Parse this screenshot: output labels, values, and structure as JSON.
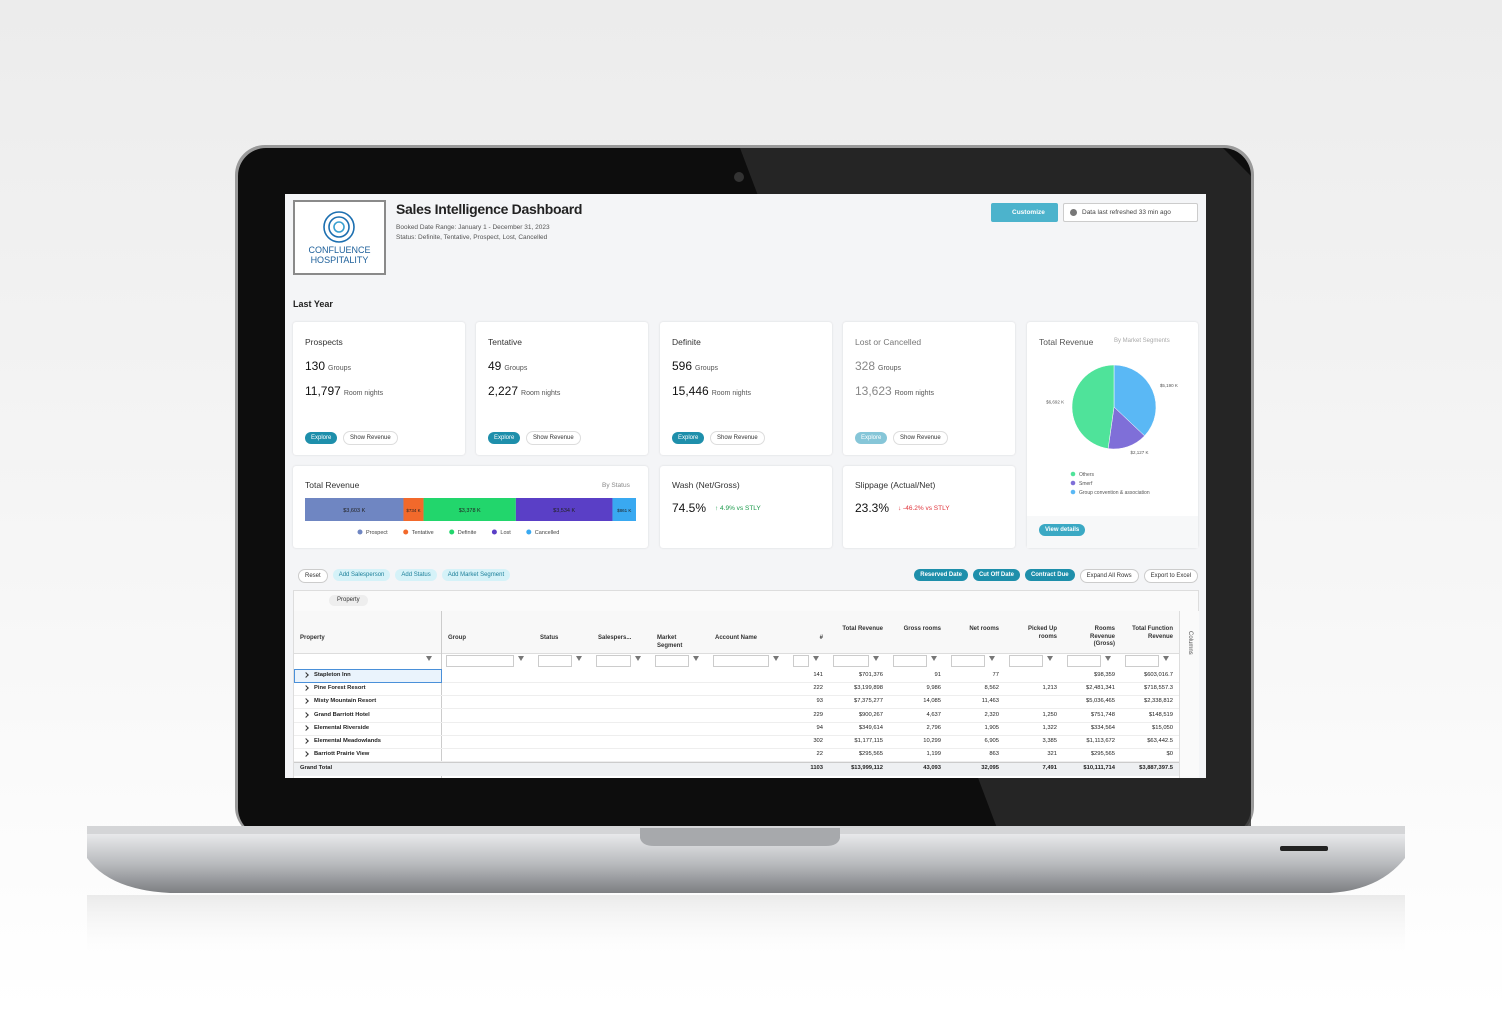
{
  "header": {
    "logo_line1": "CONFLUENCE",
    "logo_line2": "HOSPITALITY",
    "title": "Sales Intelligence Dashboard",
    "date_range": "Booked Date Range: January 1 - December 31, 2023",
    "status": "Status: Definite, Tentative, Prospect, Lost, Cancelled",
    "customize": "Customize",
    "refreshed": "Data last refreshed 33 min ago"
  },
  "section_title": "Last Year",
  "kpi_cards": [
    {
      "title": "Prospects",
      "groups": "130",
      "groups_label": "Groups",
      "room_nights": "11,797",
      "room_nights_label": "Room nights",
      "explore": "Explore",
      "show_revenue": "Show Revenue"
    },
    {
      "title": "Tentative",
      "groups": "49",
      "groups_label": "Groups",
      "room_nights": "2,227",
      "room_nights_label": "Room nights",
      "explore": "Explore",
      "show_revenue": "Show Revenue"
    },
    {
      "title": "Definite",
      "groups": "596",
      "groups_label": "Groups",
      "room_nights": "15,446",
      "room_nights_label": "Room nights",
      "explore": "Explore",
      "show_revenue": "Show Revenue"
    },
    {
      "title": "Lost or Cancelled",
      "groups": "328",
      "groups_label": "Groups",
      "room_nights": "13,623",
      "room_nights_label": "Room nights",
      "explore": "Explore",
      "show_revenue": "Show Revenue"
    }
  ],
  "revenue_by_status": {
    "title": "Total Revenue",
    "subtitle": "By Status",
    "series": [
      {
        "name": "Prospect",
        "color": "#6f86c2",
        "value": 3603,
        "value_label": "$3,603 K"
      },
      {
        "name": "Tentative",
        "color": "#f2692b",
        "value": 734,
        "value_label": "$734 K"
      },
      {
        "name": "Definite",
        "color": "#22d66c",
        "value": 3378,
        "value_label": "$3,378 K"
      },
      {
        "name": "Lost",
        "color": "#5a3fc6",
        "value": 3534,
        "value_label": "$3,534 K"
      },
      {
        "name": "Cancelled",
        "color": "#39a9f1",
        "value": 861,
        "value_label": "$861 K"
      }
    ]
  },
  "wash": {
    "title": "Wash (Net/Gross)",
    "value": "74.5%",
    "change": "↑ 4.9% vs STLY"
  },
  "slippage": {
    "title": "Slippage (Actual/Net)",
    "value": "23.3%",
    "change": "↓ -46.2% vs STLY"
  },
  "revenue_by_segment": {
    "type": "pie",
    "title": "Total Revenue",
    "subtitle": "By Market Segments",
    "button": "View details",
    "series": [
      {
        "name": "Group convention & association",
        "color": "#5ab8f5",
        "value": 5190,
        "value_label": "$5,190 K"
      },
      {
        "name": "Smerf",
        "color": "#7f6fd8",
        "value": 2127,
        "value_label": "$2,127 K"
      },
      {
        "name": "Others",
        "color": "#4fe39a",
        "value": 6692,
        "value_label": "$6,692 K"
      }
    ]
  },
  "toolbar": {
    "left": [
      "Reset",
      "Add Salesperson",
      "Add Status",
      "Add Market Segment"
    ],
    "filters": [
      "Reserved Date",
      "Cut Off Date",
      "Contract Due"
    ],
    "right": [
      "Expand All Rows",
      "Export to Excel"
    ]
  },
  "table": {
    "group_chip": "Property",
    "side_panel": "Columns",
    "columns": [
      "Property",
      "Group",
      "Status",
      "Salespers...",
      "Market Segment",
      "Account Name",
      "#",
      "Total Revenue",
      "Gross rooms",
      "Net rooms",
      "Picked Up rooms",
      "Rooms Revenue (Gross)",
      "Total Function Revenue"
    ],
    "rows": [
      {
        "property": "Stapleton Inn",
        "values": [
          "141",
          "$701,376",
          "91",
          "77",
          null,
          "$98,359",
          "$603,016.7"
        ]
      },
      {
        "property": "Pine Forest Resort",
        "values": [
          "222",
          "$3,199,898",
          "9,986",
          "8,562",
          "1,213",
          "$2,481,341",
          "$718,557.3"
        ]
      },
      {
        "property": "Misty Mountain Resort",
        "values": [
          "93",
          "$7,375,277",
          "14,085",
          "11,463",
          null,
          "$5,036,465",
          "$2,338,812"
        ]
      },
      {
        "property": "Grand Barriott Hotel",
        "values": [
          "229",
          "$900,267",
          "4,637",
          "2,320",
          "1,250",
          "$751,748",
          "$148,519"
        ]
      },
      {
        "property": "Elemental Riverside",
        "values": [
          "94",
          "$349,614",
          "2,796",
          "1,905",
          "1,322",
          "$334,564",
          "$15,050"
        ]
      },
      {
        "property": "Elemental Meadowlands",
        "values": [
          "302",
          "$1,177,115",
          "10,299",
          "6,905",
          "3,385",
          "$1,113,672",
          "$63,442.5"
        ]
      },
      {
        "property": "Barriott Prairie View",
        "values": [
          "22",
          "$295,565",
          "1,199",
          "863",
          "321",
          "$295,565",
          "$0"
        ]
      }
    ],
    "total": {
      "property": "Grand Total",
      "values": [
        "1103",
        "$13,999,112",
        "43,093",
        "32,095",
        "7,491",
        "$10,111,714",
        "$3,887,397.5"
      ]
    }
  }
}
